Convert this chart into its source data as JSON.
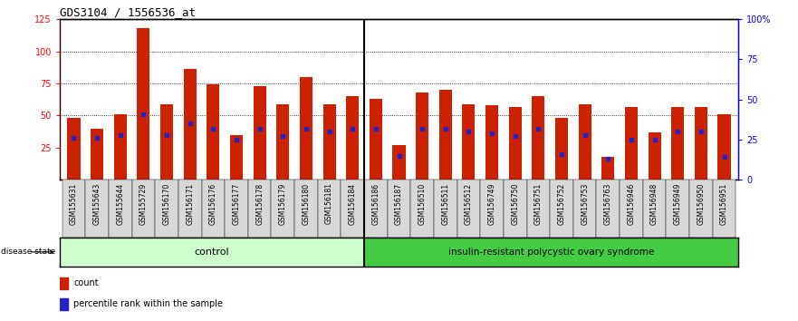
{
  "title": "GDS3104 / 1556536_at",
  "samples": [
    "GSM155631",
    "GSM155643",
    "GSM155644",
    "GSM155729",
    "GSM156170",
    "GSM156171",
    "GSM156176",
    "GSM156177",
    "GSM156178",
    "GSM156179",
    "GSM156180",
    "GSM156181",
    "GSM156184",
    "GSM156186",
    "GSM156187",
    "GSM156510",
    "GSM156511",
    "GSM156512",
    "GSM156749",
    "GSM156750",
    "GSM156751",
    "GSM156752",
    "GSM156753",
    "GSM156763",
    "GSM156946",
    "GSM156948",
    "GSM156949",
    "GSM156950",
    "GSM156951"
  ],
  "counts": [
    48,
    40,
    51,
    118,
    59,
    86,
    74,
    35,
    73,
    59,
    80,
    59,
    65,
    63,
    27,
    68,
    70,
    59,
    58,
    57,
    65,
    48,
    59,
    18,
    57,
    37,
    57,
    57,
    51
  ],
  "percentile_ranks": [
    26,
    26,
    28,
    41,
    28,
    35,
    32,
    25,
    32,
    27,
    32,
    30,
    32,
    32,
    15,
    32,
    32,
    30,
    29,
    27,
    32,
    16,
    28,
    13,
    25,
    25,
    30,
    30,
    14
  ],
  "control_count": 13,
  "disease_count": 16,
  "control_label": "control",
  "disease_label": "insulin-resistant polycystic ovary syndrome",
  "bar_color": "#cc2200",
  "blue_color": "#2222cc",
  "control_bg": "#ccffcc",
  "disease_bg": "#44cc44",
  "xtick_bg": "#d8d8d8",
  "plot_bg": "#ffffff",
  "ylim_left": [
    0,
    125
  ],
  "ylim_right": [
    0,
    100
  ],
  "yticks_left": [
    25,
    50,
    75,
    100,
    125
  ],
  "yticks_right": [
    0,
    25,
    50,
    75,
    100
  ],
  "grid_values": [
    50,
    75,
    100
  ]
}
